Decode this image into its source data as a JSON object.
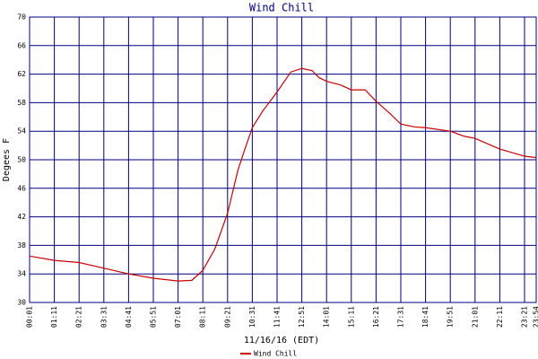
{
  "chart_data": {
    "type": "line",
    "title": "Wind Chill",
    "x_label": "11/16/16 (EDT)",
    "y_label": "Degees F",
    "x": [
      1,
      71,
      141,
      211,
      281,
      351,
      421,
      460,
      491,
      525,
      561,
      590,
      610,
      631,
      660,
      701,
      740,
      771,
      800,
      820,
      841,
      880,
      911,
      950,
      981,
      1020,
      1051,
      1090,
      1121,
      1191,
      1230,
      1261,
      1331,
      1401,
      1434
    ],
    "series": [
      {
        "name": "Wind Chill",
        "color": "#cc0000",
        "values": [
          36.5,
          35.9,
          35.6,
          34.8,
          34.0,
          33.4,
          33.0,
          33.1,
          34.5,
          37.5,
          42.5,
          48.5,
          51.5,
          54.5,
          56.8,
          59.5,
          62.3,
          62.8,
          62.5,
          61.5,
          61.0,
          60.5,
          59.8,
          59.8,
          58.2,
          56.5,
          55.0,
          54.6,
          54.5,
          54.0,
          53.3,
          53.0,
          51.5,
          50.5,
          50.3
        ]
      }
    ],
    "xlim": [
      1,
      1434
    ],
    "xticks": [
      {
        "value": 1,
        "label": "00:01"
      },
      {
        "value": 71,
        "label": "01:11"
      },
      {
        "value": 141,
        "label": "02:21"
      },
      {
        "value": 211,
        "label": "03:31"
      },
      {
        "value": 281,
        "label": "04:41"
      },
      {
        "value": 351,
        "label": "05:51"
      },
      {
        "value": 421,
        "label": "07:01"
      },
      {
        "value": 491,
        "label": "08:11"
      },
      {
        "value": 561,
        "label": "09:21"
      },
      {
        "value": 631,
        "label": "10:31"
      },
      {
        "value": 701,
        "label": "11:41"
      },
      {
        "value": 771,
        "label": "12:51"
      },
      {
        "value": 841,
        "label": "14:01"
      },
      {
        "value": 911,
        "label": "15:11"
      },
      {
        "value": 981,
        "label": "16:21"
      },
      {
        "value": 1051,
        "label": "17:31"
      },
      {
        "value": 1121,
        "label": "18:41"
      },
      {
        "value": 1191,
        "label": "19:51"
      },
      {
        "value": 1261,
        "label": "21:01"
      },
      {
        "value": 1331,
        "label": "22:11"
      },
      {
        "value": 1401,
        "label": "23:21"
      },
      {
        "value": 1434,
        "label": "23:54"
      }
    ],
    "ylim": [
      30,
      70
    ],
    "yticks": [
      30,
      34,
      38,
      42,
      46,
      50,
      54,
      58,
      62,
      66,
      70
    ],
    "grid": true,
    "grid_color": "#000080"
  }
}
